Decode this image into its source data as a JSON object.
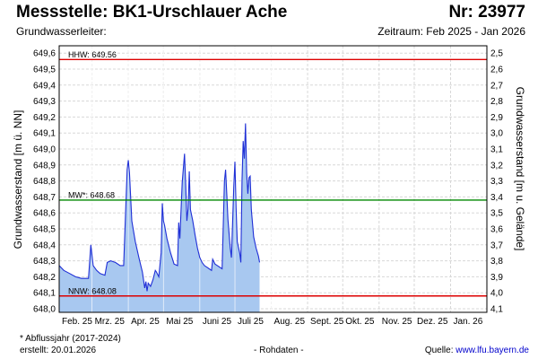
{
  "header": {
    "title": "Messstelle: BK1-Urschlauer Ache",
    "nr": "Nr: 23977",
    "aquifer": "Grundwasserleiter:",
    "period": "Zeitraum: Feb 2025 - Jan 2026"
  },
  "footer": {
    "footnote": "* Abflussjahr (2017-2024)",
    "created": "erstellt:  20.01.2026",
    "raw": "- Rohdaten -",
    "source_label": "Quelle: ",
    "source_url": "www.lfu.bayern.de"
  },
  "colors": {
    "series_line": "#1f2fd6",
    "series_fill": "#a8c8f0",
    "hhw_nnw": "#dd0000",
    "mw": "#008800",
    "grid": "#d8d8d8"
  },
  "chart_data": {
    "type": "area",
    "ylabel": "Grundwasserstand [m ü. NN]",
    "ylabel_right": "Grundwasserstand [m u. Gelände]",
    "ylim": [
      648.0,
      649.62
    ],
    "y_ticks": [
      "648,0",
      "648,1",
      "648,2",
      "648,3",
      "648,4",
      "648,5",
      "648,6",
      "648,7",
      "648,8",
      "648,9",
      "649,0",
      "649,1",
      "649,2",
      "649,3",
      "649,4",
      "649,5",
      "649,6"
    ],
    "y_right_ticks": [
      "4,1",
      "4,0",
      "3,9",
      "3,8",
      "3,7",
      "3,6",
      "3,5",
      "3,4",
      "3,3",
      "3,2",
      "3,1",
      "3,0",
      "2,9",
      "2,8",
      "2,7",
      "2,6",
      "2,5"
    ],
    "x_categories": [
      "Feb. 25",
      "Mrz. 25",
      "Apr. 25",
      "Mai 25",
      "Juni 25",
      "Juli 25",
      "Aug. 25",
      "Sept. 25",
      "Okt. 25",
      "Nov. 25",
      "Dez. 25",
      "Jan. 26"
    ],
    "grid": true,
    "reference_lines": [
      {
        "label": "HHW: 649.56",
        "value": 649.56,
        "color": "#dd0000"
      },
      {
        "label": "MW*: 648.68",
        "value": 648.68,
        "color": "#008800"
      },
      {
        "label": "NNW: 648.08",
        "value": 648.08,
        "color": "#dd0000"
      }
    ],
    "series": [
      {
        "points": [
          [
            "2025-02-01",
            648.27
          ],
          [
            "2025-02-05",
            648.24
          ],
          [
            "2025-02-10",
            648.22
          ],
          [
            "2025-02-15",
            648.2
          ],
          [
            "2025-02-20",
            648.19
          ],
          [
            "2025-02-26",
            648.19
          ],
          [
            "2025-02-28",
            648.4
          ],
          [
            "2025-03-02",
            648.27
          ],
          [
            "2025-03-05",
            648.24
          ],
          [
            "2025-03-08",
            648.22
          ],
          [
            "2025-03-12",
            648.21
          ],
          [
            "2025-03-14",
            648.29
          ],
          [
            "2025-03-17",
            648.3
          ],
          [
            "2025-03-21",
            648.29
          ],
          [
            "2025-03-25",
            648.27
          ],
          [
            "2025-03-28",
            648.27
          ],
          [
            "2025-03-31",
            648.87
          ],
          [
            "2025-04-01",
            648.93
          ],
          [
            "2025-04-02",
            648.85
          ],
          [
            "2025-04-04",
            648.55
          ],
          [
            "2025-04-07",
            648.42
          ],
          [
            "2025-04-10",
            648.32
          ],
          [
            "2025-04-13",
            648.23
          ],
          [
            "2025-04-15",
            648.13
          ],
          [
            "2025-04-16",
            648.17
          ],
          [
            "2025-04-17",
            648.11
          ],
          [
            "2025-04-18",
            648.16
          ],
          [
            "2025-04-20",
            648.14
          ],
          [
            "2025-04-22",
            648.18
          ],
          [
            "2025-04-24",
            648.24
          ],
          [
            "2025-04-25",
            648.23
          ],
          [
            "2025-04-27",
            648.2
          ],
          [
            "2025-04-29",
            648.35
          ],
          [
            "2025-04-30",
            648.66
          ],
          [
            "2025-05-01",
            648.55
          ],
          [
            "2025-05-02",
            648.52
          ],
          [
            "2025-05-04",
            648.44
          ],
          [
            "2025-05-07",
            648.35
          ],
          [
            "2025-05-10",
            648.28
          ],
          [
            "2025-05-13",
            648.27
          ],
          [
            "2025-05-14",
            648.54
          ],
          [
            "2025-05-15",
            648.44
          ],
          [
            "2025-05-17",
            648.79
          ],
          [
            "2025-05-19",
            648.97
          ],
          [
            "2025-05-20",
            648.78
          ],
          [
            "2025-05-21",
            648.55
          ],
          [
            "2025-05-22",
            648.63
          ],
          [
            "2025-05-23",
            648.86
          ],
          [
            "2025-05-24",
            648.62
          ],
          [
            "2025-05-26",
            648.55
          ],
          [
            "2025-05-28",
            648.46
          ],
          [
            "2025-05-30",
            648.38
          ],
          [
            "2025-06-01",
            648.32
          ],
          [
            "2025-06-03",
            648.29
          ],
          [
            "2025-06-05",
            648.27
          ],
          [
            "2025-06-07",
            648.26
          ],
          [
            "2025-06-09",
            648.25
          ],
          [
            "2025-06-11",
            648.24
          ],
          [
            "2025-06-12",
            648.31
          ],
          [
            "2025-06-14",
            648.28
          ],
          [
            "2025-06-16",
            648.27
          ],
          [
            "2025-06-20",
            648.25
          ],
          [
            "2025-06-22",
            648.8
          ],
          [
            "2025-06-23",
            648.87
          ],
          [
            "2025-06-24",
            648.72
          ],
          [
            "2025-06-25",
            648.56
          ],
          [
            "2025-06-27",
            648.38
          ],
          [
            "2025-06-28",
            648.32
          ],
          [
            "2025-06-30",
            648.76
          ],
          [
            "2025-07-01",
            648.92
          ],
          [
            "2025-07-02",
            648.63
          ],
          [
            "2025-07-03",
            648.42
          ],
          [
            "2025-07-05",
            648.35
          ],
          [
            "2025-07-06",
            648.29
          ],
          [
            "2025-07-07",
            648.8
          ],
          [
            "2025-07-08",
            649.05
          ],
          [
            "2025-07-09",
            648.94
          ],
          [
            "2025-07-10",
            649.16
          ],
          [
            "2025-07-11",
            648.85
          ],
          [
            "2025-07-12",
            648.72
          ],
          [
            "2025-07-13",
            648.82
          ],
          [
            "2025-07-14",
            648.83
          ],
          [
            "2025-07-15",
            648.62
          ],
          [
            "2025-07-17",
            648.45
          ],
          [
            "2025-07-19",
            648.38
          ],
          [
            "2025-07-21",
            648.33
          ],
          [
            "2025-07-22",
            648.29
          ]
        ]
      }
    ]
  }
}
